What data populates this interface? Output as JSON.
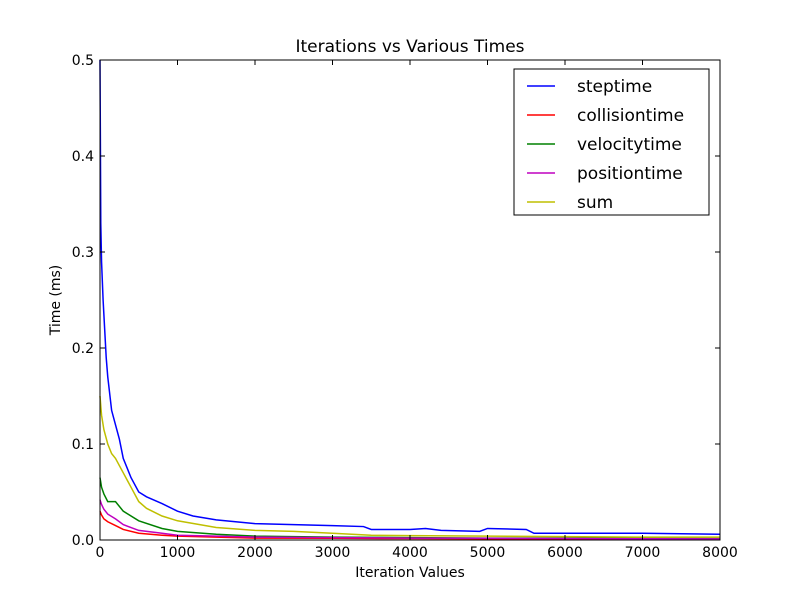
{
  "chart_data": {
    "type": "line",
    "title": "Iterations vs Various Times",
    "xlabel": "Iteration Values",
    "ylabel": "Time (ms)",
    "xlim": [
      0,
      8000
    ],
    "ylim": [
      0,
      0.5
    ],
    "xticks": [
      0,
      1000,
      2000,
      3000,
      4000,
      5000,
      6000,
      7000,
      8000
    ],
    "yticks": [
      0.0,
      0.1,
      0.2,
      0.3,
      0.4,
      0.5
    ],
    "xtick_labels": [
      "0",
      "1000",
      "2000",
      "3000",
      "4000",
      "5000",
      "6000",
      "7000",
      "8000"
    ],
    "ytick_labels": [
      "0.0",
      "0.1",
      "0.2",
      "0.3",
      "0.4",
      "0.5"
    ],
    "grid": false,
    "legend_position": "top-right",
    "series": [
      {
        "name": "steptime",
        "color": "#0000ff",
        "x": [
          0,
          10,
          20,
          40,
          60,
          80,
          100,
          150,
          200,
          250,
          300,
          400,
          500,
          600,
          800,
          1000,
          1200,
          1500,
          2000,
          2500,
          3000,
          3400,
          3500,
          4000,
          4200,
          4400,
          4900,
          5000,
          5500,
          5600,
          6000,
          7000,
          8000
        ],
        "y": [
          0.5,
          0.33,
          0.29,
          0.25,
          0.22,
          0.19,
          0.17,
          0.135,
          0.12,
          0.105,
          0.085,
          0.065,
          0.05,
          0.045,
          0.038,
          0.03,
          0.025,
          0.021,
          0.017,
          0.016,
          0.015,
          0.014,
          0.011,
          0.011,
          0.012,
          0.01,
          0.009,
          0.012,
          0.011,
          0.007,
          0.007,
          0.007,
          0.006
        ]
      },
      {
        "name": "collisiontime",
        "color": "#ff0000",
        "x": [
          0,
          20,
          50,
          100,
          200,
          300,
          500,
          800,
          1000,
          1500,
          2000,
          3000,
          4000,
          5000,
          6000,
          8000
        ],
        "y": [
          0.03,
          0.026,
          0.022,
          0.019,
          0.015,
          0.011,
          0.007,
          0.005,
          0.004,
          0.003,
          0.002,
          0.0018,
          0.0015,
          0.0013,
          0.0012,
          0.001
        ]
      },
      {
        "name": "velocitytime",
        "color": "#008000",
        "x": [
          0,
          20,
          50,
          100,
          200,
          300,
          500,
          800,
          1000,
          1500,
          2000,
          3000,
          4000,
          5000,
          6000,
          8000
        ],
        "y": [
          0.065,
          0.055,
          0.048,
          0.04,
          0.04,
          0.03,
          0.02,
          0.012,
          0.009,
          0.006,
          0.004,
          0.003,
          0.0025,
          0.002,
          0.002,
          0.0015
        ]
      },
      {
        "name": "positiontime",
        "color": "#bf00bf",
        "x": [
          0,
          20,
          50,
          100,
          200,
          300,
          500,
          800,
          1000,
          1500,
          2000,
          3000,
          4000,
          5000,
          6000,
          8000
        ],
        "y": [
          0.042,
          0.037,
          0.032,
          0.027,
          0.022,
          0.016,
          0.01,
          0.007,
          0.005,
          0.004,
          0.003,
          0.0025,
          0.002,
          0.0018,
          0.0015,
          0.0012
        ]
      },
      {
        "name": "sum",
        "color": "#bfbf00",
        "x": [
          0,
          20,
          50,
          100,
          150,
          200,
          300,
          400,
          500,
          600,
          800,
          1000,
          1500,
          2000,
          2500,
          3000,
          3500,
          4000,
          5000,
          6000,
          7000,
          8000
        ],
        "y": [
          0.15,
          0.13,
          0.115,
          0.1,
          0.09,
          0.085,
          0.07,
          0.055,
          0.04,
          0.033,
          0.025,
          0.02,
          0.013,
          0.01,
          0.009,
          0.007,
          0.005,
          0.0045,
          0.004,
          0.0035,
          0.003,
          0.003
        ]
      }
    ]
  }
}
